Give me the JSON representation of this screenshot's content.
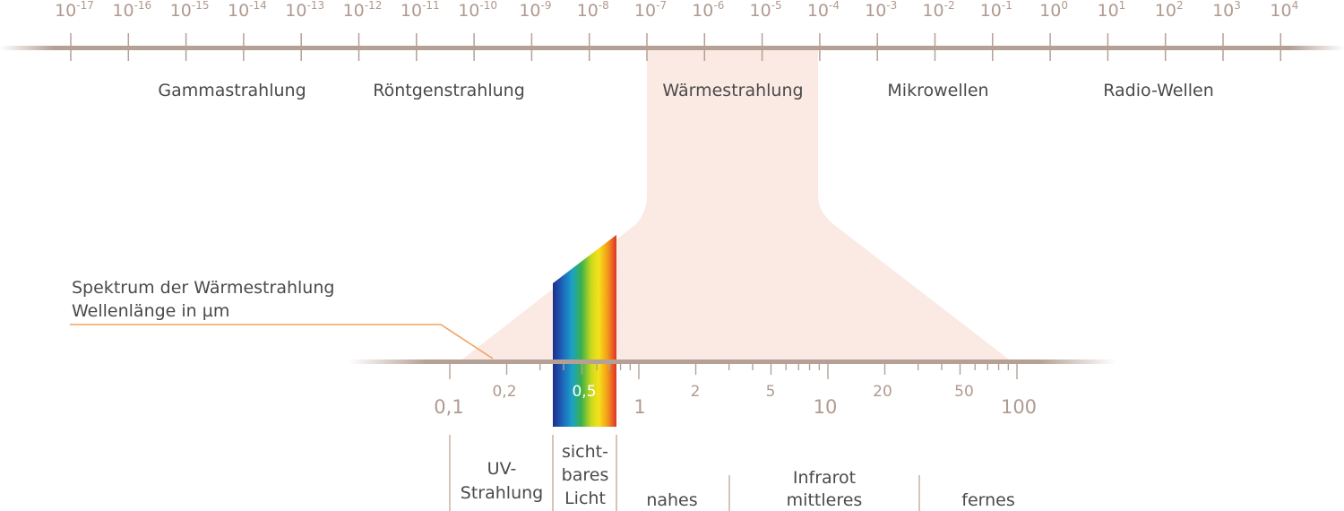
{
  "colors": {
    "axis_line": "#b5a096",
    "tick": "#b5a096",
    "tick_label": "#b09a90",
    "highlight_fill": "#fbe9e3",
    "text": "#4a4a4a",
    "leader_line": "#f2a35f",
    "divider": "#c9b0a5"
  },
  "top_scale": {
    "ticks": [
      {
        "base": "10",
        "exp": "-17"
      },
      {
        "base": "10",
        "exp": "-16"
      },
      {
        "base": "10",
        "exp": "-15"
      },
      {
        "base": "10",
        "exp": "-14"
      },
      {
        "base": "10",
        "exp": "-13"
      },
      {
        "base": "10",
        "exp": "-12"
      },
      {
        "base": "10",
        "exp": "-11"
      },
      {
        "base": "10",
        "exp": "-10"
      },
      {
        "base": "10",
        "exp": "-9"
      },
      {
        "base": "10",
        "exp": "-8"
      },
      {
        "base": "10",
        "exp": "-7"
      },
      {
        "base": "10",
        "exp": "-6"
      },
      {
        "base": "10",
        "exp": "-5"
      },
      {
        "base": "10",
        "exp": "-4"
      },
      {
        "base": "10",
        "exp": "-3"
      },
      {
        "base": "10",
        "exp": "-2"
      },
      {
        "base": "10",
        "exp": "-1"
      },
      {
        "base": "10",
        "exp": "0"
      },
      {
        "base": "10",
        "exp": "1"
      },
      {
        "base": "10",
        "exp": "2"
      },
      {
        "base": "10",
        "exp": "3"
      },
      {
        "base": "10",
        "exp": "4"
      }
    ],
    "bands": [
      "Gammastrahlung",
      "Röntgenstrahlung",
      "Wärmestrahlung",
      "Mikrowellen",
      "Radio-Wellen"
    ]
  },
  "caption": {
    "line1": "Spektrum der Wärmestrahlung",
    "line2": "Wellenlänge in µm"
  },
  "bottom_scale": {
    "major_labels": [
      "0,1",
      "1",
      "10",
      "100"
    ],
    "minor_labels": [
      "0,2",
      "0,5",
      "2",
      "5",
      "20",
      "50"
    ]
  },
  "regions": {
    "uv": [
      "UV-",
      "Strahlung"
    ],
    "visible": [
      "sicht-",
      "bares",
      "Licht"
    ],
    "infrared_title": "Infrarot",
    "near": "nahes",
    "mid": "mittleres",
    "far": "fernes"
  }
}
